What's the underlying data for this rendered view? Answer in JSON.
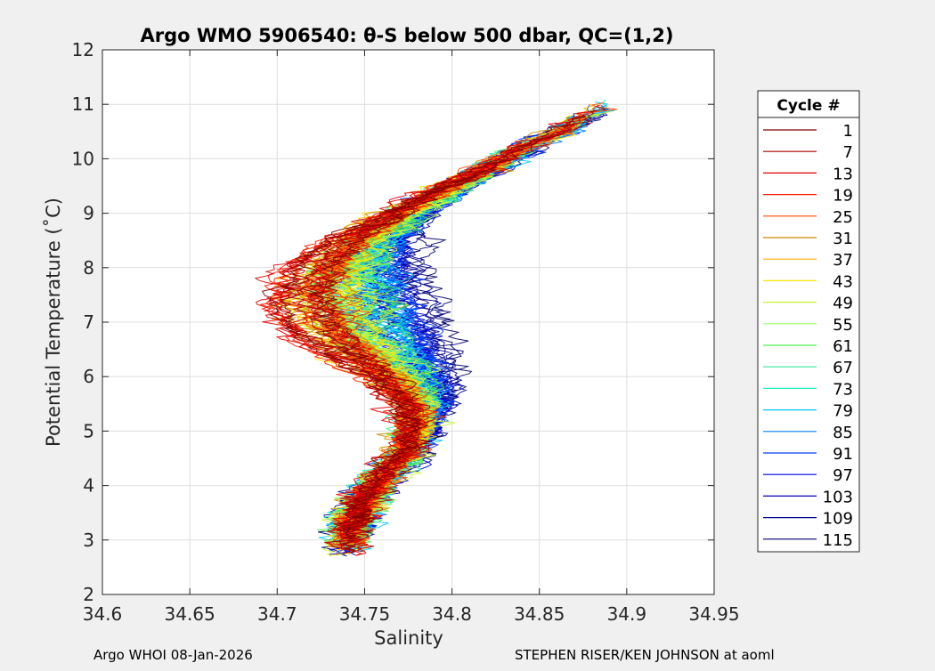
{
  "figure": {
    "background": "#f0f0f0",
    "footer_left": "Argo WHOI 08-Jan-2026",
    "footer_right": "STEPHEN RISER/KEN JOHNSON at aoml"
  },
  "chart_data": {
    "type": "line",
    "title": "Argo WMO 5906540: θ-S below 500 dbar,  QC=(1,2)",
    "xlabel": "Salinity",
    "ylabel": "Potential Temperature (˚C)",
    "xlim": [
      34.6,
      34.95
    ],
    "ylim": [
      2,
      12
    ],
    "xticks": [
      34.6,
      34.65,
      34.7,
      34.75,
      34.8,
      34.85,
      34.9,
      34.95
    ],
    "xtick_labels": [
      "34.6",
      "34.65",
      "34.7",
      "34.75",
      "34.8",
      "34.85",
      "34.9",
      "34.95"
    ],
    "yticks": [
      2,
      3,
      4,
      5,
      6,
      7,
      8,
      9,
      10,
      11,
      12
    ],
    "ytick_labels": [
      "2",
      "3",
      "4",
      "5",
      "6",
      "7",
      "8",
      "9",
      "10",
      "11",
      "12"
    ],
    "grid": true,
    "legend_title": "Cycle #",
    "legend_position": "right",
    "colormap": "jet (cycle 1 = dark red … cycle 115 = dark blue)",
    "series": [
      {
        "name": "1",
        "color": "#800000"
      },
      {
        "name": "7",
        "color": "#ad0000"
      },
      {
        "name": "13",
        "color": "#e00000"
      },
      {
        "name": "19",
        "color": "#ff1a00"
      },
      {
        "name": "25",
        "color": "#ff4d00"
      },
      {
        "name": "31",
        "color": "#c88b00"
      },
      {
        "name": "37",
        "color": "#ffb300"
      },
      {
        "name": "43",
        "color": "#ffe600"
      },
      {
        "name": "49",
        "color": "#cdf532"
      },
      {
        "name": "55",
        "color": "#99ff66"
      },
      {
        "name": "61",
        "color": "#4df04d"
      },
      {
        "name": "67",
        "color": "#33e699"
      },
      {
        "name": "73",
        "color": "#1aebc6"
      },
      {
        "name": "79",
        "color": "#00c8ff"
      },
      {
        "name": "85",
        "color": "#0080ff"
      },
      {
        "name": "91",
        "color": "#003cff"
      },
      {
        "name": "97",
        "color": "#0000e0"
      },
      {
        "name": "103",
        "color": "#0000b0"
      },
      {
        "name": "109",
        "color": "#000090"
      },
      {
        "name": "115",
        "color": "#000070"
      }
    ],
    "profile_shape": {
      "note": "approximate mean theta-S curve; each series is a noisy profile around a cycle-dependent variant of this",
      "theta": [
        3.0,
        3.5,
        4.0,
        4.5,
        5.0,
        5.5,
        6.0,
        6.5,
        7.0,
        7.5,
        8.0,
        8.5,
        9.0,
        9.5,
        10.0,
        10.5,
        10.9
      ],
      "salinity": [
        34.74,
        34.745,
        34.755,
        34.77,
        34.778,
        34.778,
        34.765,
        34.745,
        34.73,
        34.725,
        34.73,
        34.745,
        34.77,
        34.8,
        34.83,
        34.86,
        34.885
      ]
    }
  }
}
